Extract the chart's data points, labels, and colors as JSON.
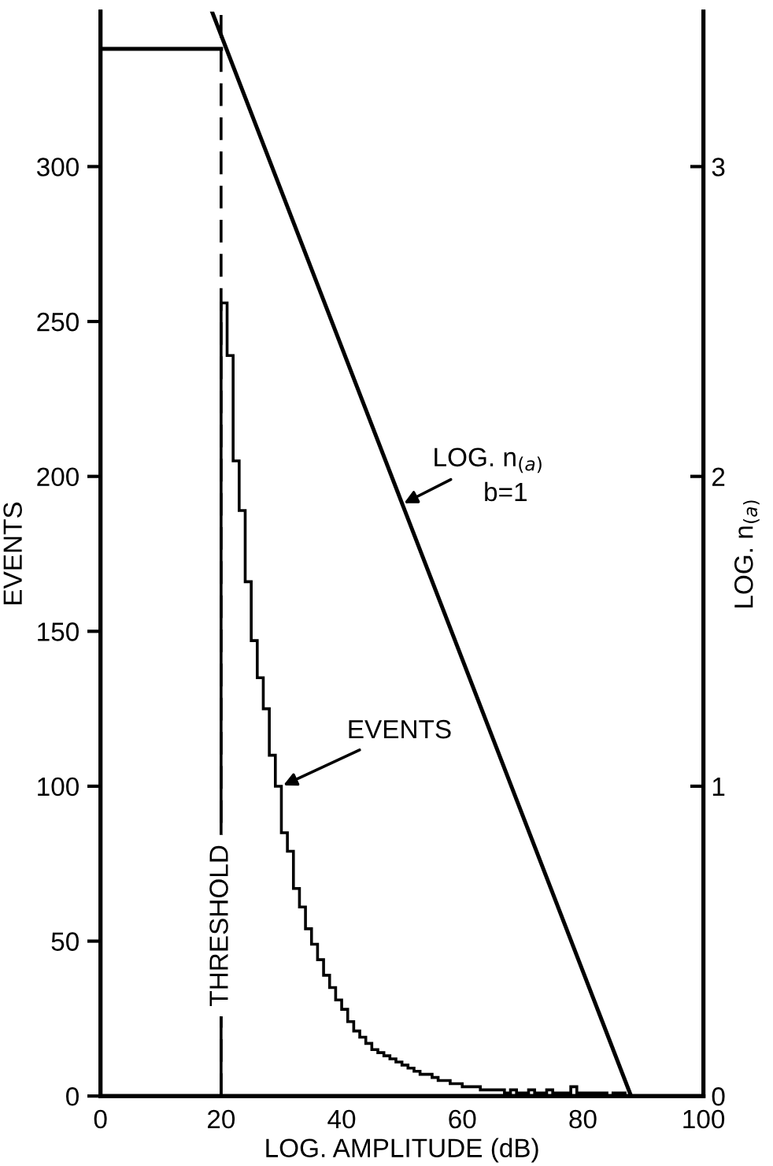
{
  "chart_data": {
    "type": "histogram",
    "xlabel": "LOG. AMPLITUDE (dB)",
    "ylabel": "EVENTS",
    "y2label": "LOG. n$_{(a)}$",
    "bins": [
      20,
      21,
      22,
      23,
      24,
      25,
      26,
      27,
      28,
      29,
      30,
      31,
      32,
      33,
      34,
      35,
      36,
      37,
      38,
      39,
      40,
      41,
      42,
      43,
      44,
      45,
      46,
      47,
      48,
      49,
      50,
      51,
      52,
      53,
      54,
      55,
      56,
      57,
      58,
      59,
      60,
      61,
      62,
      63,
      64,
      65,
      66,
      67,
      68,
      69,
      70,
      71,
      72,
      73,
      74,
      75,
      76,
      77,
      78,
      79,
      80,
      81,
      82,
      83,
      84,
      85,
      86,
      87,
      88
    ],
    "values": [
      256,
      239,
      205,
      189,
      166,
      147,
      135,
      125,
      110,
      100,
      85,
      79,
      67,
      61,
      54,
      49,
      44,
      39,
      35,
      31,
      28,
      24,
      21,
      19,
      17,
      15,
      14,
      13,
      12,
      11,
      10,
      9,
      8,
      7,
      7,
      6,
      5,
      5,
      4,
      4,
      3,
      3,
      3,
      2,
      2,
      2,
      2,
      1,
      2,
      1,
      1,
      2,
      1,
      1,
      2,
      1,
      1,
      1,
      3,
      1,
      1,
      1,
      1,
      1,
      0,
      1,
      1,
      0
    ],
    "color": "#000000",
    "series": [
      {
        "type": "line",
        "axis": "y2",
        "x": [
          0,
          20
        ],
        "values": [
          3.38,
          3.38
        ],
        "color": "#000000"
      },
      {
        "type": "line",
        "axis": "y2",
        "x": [
          18.5,
          88
        ],
        "values": [
          3.5,
          0
        ],
        "color": "#000000"
      }
    ],
    "xlim": [
      0,
      100
    ],
    "xticks": [
      0,
      20,
      40,
      60,
      80,
      100
    ],
    "ylim": [
      0,
      350
    ],
    "yticks": [
      0,
      50,
      100,
      150,
      200,
      250,
      300
    ],
    "y2lim": [
      0,
      3.5
    ],
    "y2ticks": [
      0,
      1,
      2,
      3
    ],
    "ref_lines": [
      {
        "axis": "x",
        "value": 20,
        "label": "THRESHOLD",
        "color": "#000000",
        "line_style": "dashed"
      }
    ],
    "annotations": [
      {
        "text": "LOG. n$_{(a)}$",
        "x": 50,
        "y": 191
      },
      {
        "text": "EVENTS",
        "x": 30,
        "y": 100
      },
      "b=1"
    ],
    "grid": false,
    "legend": false,
    "line_style": "solid",
    "marker": "none"
  }
}
